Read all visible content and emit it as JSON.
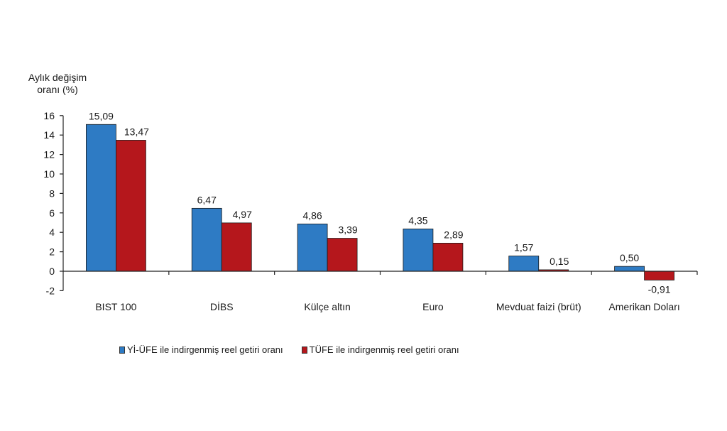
{
  "chart_data": {
    "type": "bar",
    "title": "",
    "ylabel": "Aylık değişim oranı (%)",
    "xlabel": "",
    "ylim": [
      -2,
      16
    ],
    "yticks": [
      -2,
      0,
      2,
      4,
      6,
      8,
      10,
      12,
      14,
      16
    ],
    "grid": false,
    "legend_position": "bottom",
    "categories": [
      "BIST 100",
      "DİBS",
      "Külçe altın",
      "Euro",
      "Mevduat faizi (brüt)",
      "Amerikan Doları"
    ],
    "series": [
      {
        "name": "Yİ-ÜFE ile indirgenmiş reel getiri oranı",
        "color": "#2e7bc4",
        "values": [
          15.09,
          6.47,
          4.86,
          4.35,
          1.57,
          0.5
        ],
        "labels": [
          "15,09",
          "6,47",
          "4,86",
          "4,35",
          "1,57",
          "0,50"
        ]
      },
      {
        "name": "TÜFE ile indirgenmiş reel getiri oranı",
        "color": "#b5171c",
        "values": [
          13.47,
          4.97,
          3.39,
          2.89,
          0.15,
          -0.91
        ],
        "labels": [
          "13,47",
          "4,97",
          "3,39",
          "2,89",
          "0,15",
          "-0,91"
        ]
      }
    ]
  },
  "axis": {
    "ylabel_line1": "Aylık değişim",
    "ylabel_line2": "oranı (%)"
  },
  "legend": [
    {
      "label": "Yİ-ÜFE ile indirgenmiş reel getiri oranı",
      "color": "#2e7bc4"
    },
    {
      "label": "TÜFE ile indirgenmiş reel getiri oranı",
      "color": "#b5171c"
    }
  ]
}
